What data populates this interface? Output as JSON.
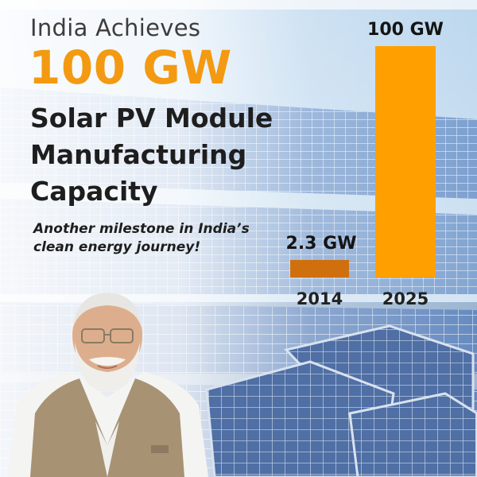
{
  "headline": {
    "intro": "India Achieves",
    "figure": "100 GW",
    "main": "Solar PV Module Manufacturing Capacity",
    "tagline": "Another milestone in India’s clean energy journey!"
  },
  "colors": {
    "accent_orange": "#f39a12",
    "bar_2014": "#cf6f0e",
    "bar_2025": "#ffa000",
    "text_dark": "#1e1e1e"
  },
  "chart_data": {
    "type": "bar",
    "categories": [
      "2014",
      "2025"
    ],
    "values": [
      2.3,
      100
    ],
    "value_labels": [
      "2.3 GW",
      "100 GW"
    ],
    "unit": "GW",
    "title": "",
    "xlabel": "",
    "ylabel": "",
    "ylim": [
      0,
      100
    ],
    "grid": false,
    "legend": "none"
  }
}
